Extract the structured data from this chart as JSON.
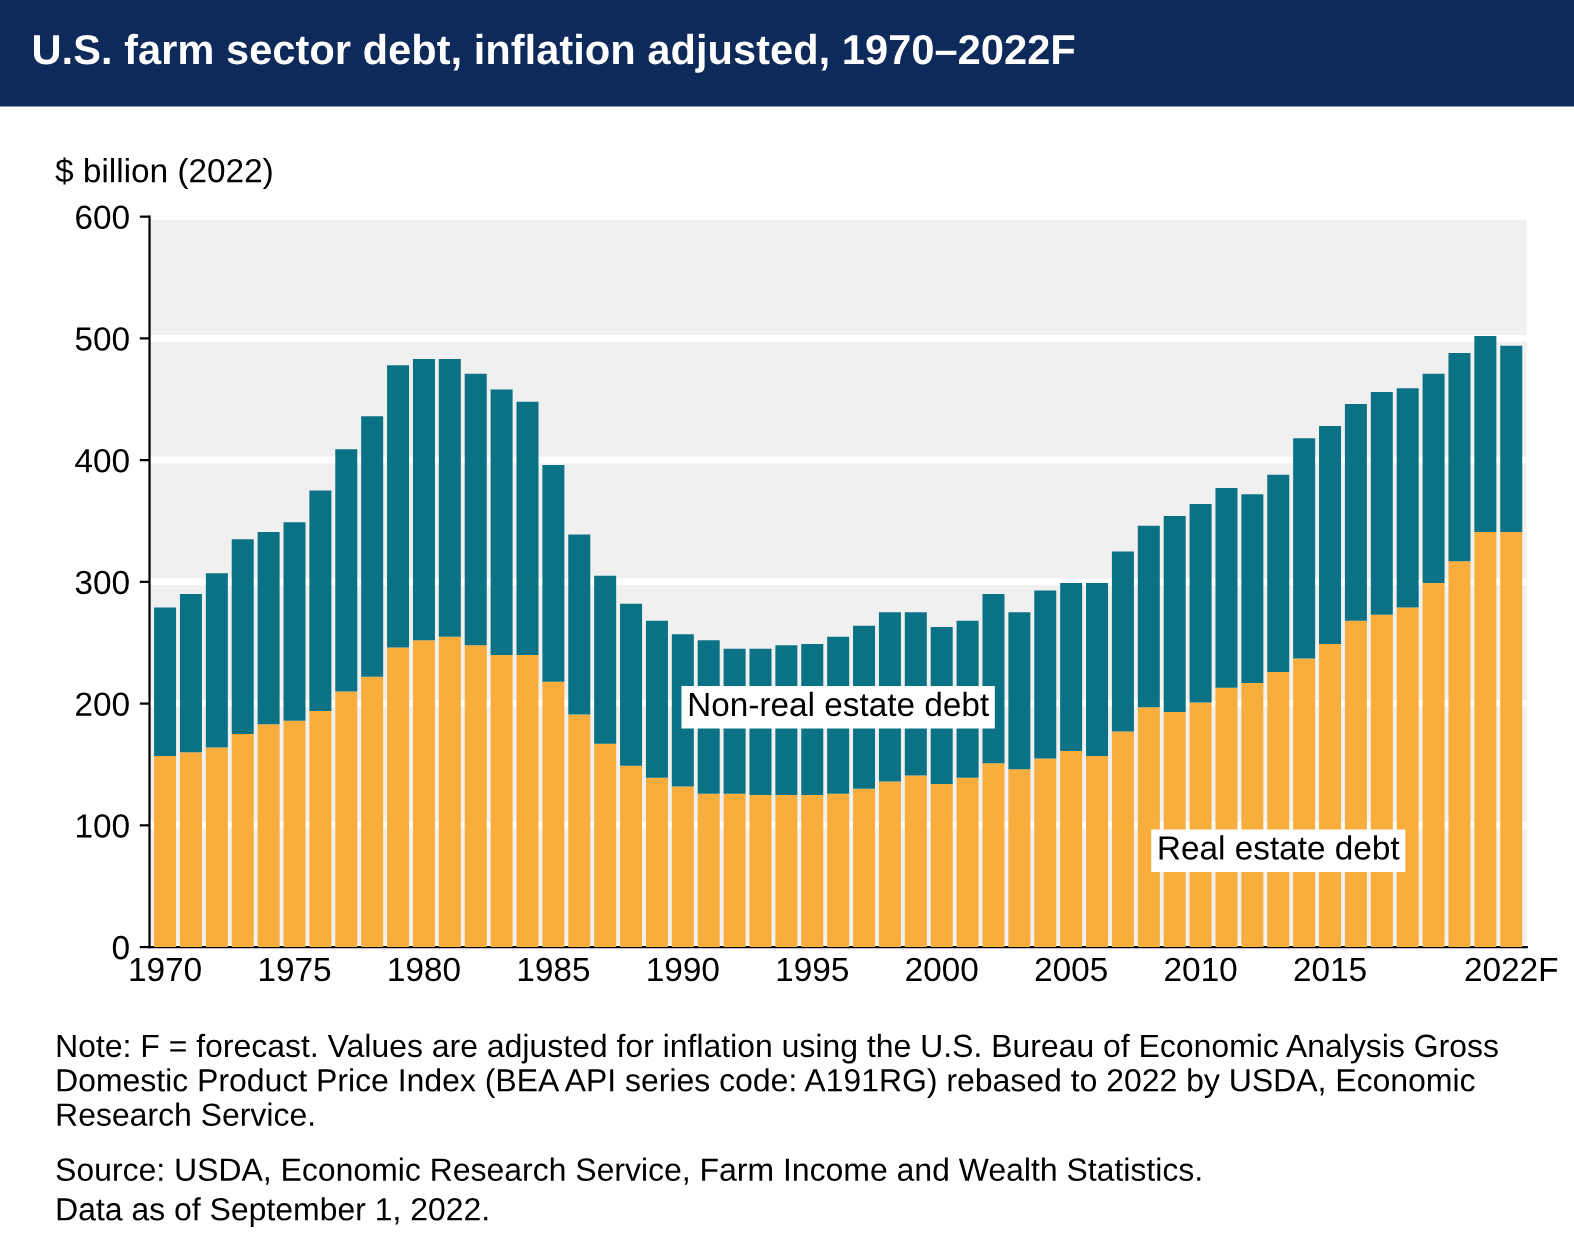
{
  "chart_data": {
    "type": "bar",
    "stacked": true,
    "title": "U.S. farm sector debt, inflation adjusted, 1970–2022F",
    "ylabel": "$ billion (2022)",
    "categories": [
      "1970",
      null,
      null,
      null,
      null,
      "1975",
      null,
      null,
      null,
      null,
      "1980",
      null,
      null,
      null,
      null,
      "1985",
      null,
      null,
      null,
      null,
      "1990",
      null,
      null,
      null,
      null,
      "1995",
      null,
      null,
      null,
      null,
      "2000",
      null,
      null,
      null,
      null,
      "2005",
      null,
      null,
      null,
      null,
      "2010",
      null,
      null,
      null,
      null,
      "2015",
      null,
      null,
      null,
      null,
      null,
      null,
      "2022F"
    ],
    "series": [
      {
        "name": "Real estate debt",
        "color": "#f9ad3c",
        "values": [
          157,
          160,
          164,
          175,
          183,
          186,
          194,
          210,
          222,
          246,
          252,
          255,
          248,
          240,
          240,
          218,
          191,
          167,
          149,
          139,
          132,
          126,
          126,
          125,
          125,
          125,
          126,
          130,
          136,
          141,
          134,
          139,
          151,
          146,
          155,
          161,
          157,
          177,
          197,
          193,
          201,
          213,
          217,
          226,
          237,
          249,
          268,
          273,
          279,
          299,
          317,
          341,
          341
        ]
      },
      {
        "name": "Non-real estate debt",
        "color": "#0b7285",
        "values": [
          122,
          130,
          143,
          160,
          158,
          163,
          181,
          199,
          214,
          232,
          231,
          228,
          223,
          218,
          208,
          178,
          148,
          138,
          133,
          129,
          125,
          126,
          119,
          120,
          123,
          124,
          129,
          134,
          139,
          134,
          129,
          129,
          139,
          129,
          138,
          138,
          142,
          148,
          149,
          161,
          163,
          164,
          155,
          162,
          181,
          179,
          178,
          183,
          180,
          172,
          171,
          161,
          153
        ]
      }
    ],
    "ylim": [
      0,
      600
    ],
    "yticks": [
      0,
      100,
      200,
      300,
      400,
      500,
      600
    ],
    "grid": "y",
    "annotations": [
      "Note: F = forecast. Values are adjusted for inflation using the U.S. Bureau of Economic Analysis Gross Domestic Product Price Index (BEA API series code: A191RG) rebased to 2022 by USDA, Economic Research Service.",
      "Source: USDA, Economic Research Service, Farm Income and Wealth Statistics.",
      "Data as of September 1, 2022."
    ]
  }
}
